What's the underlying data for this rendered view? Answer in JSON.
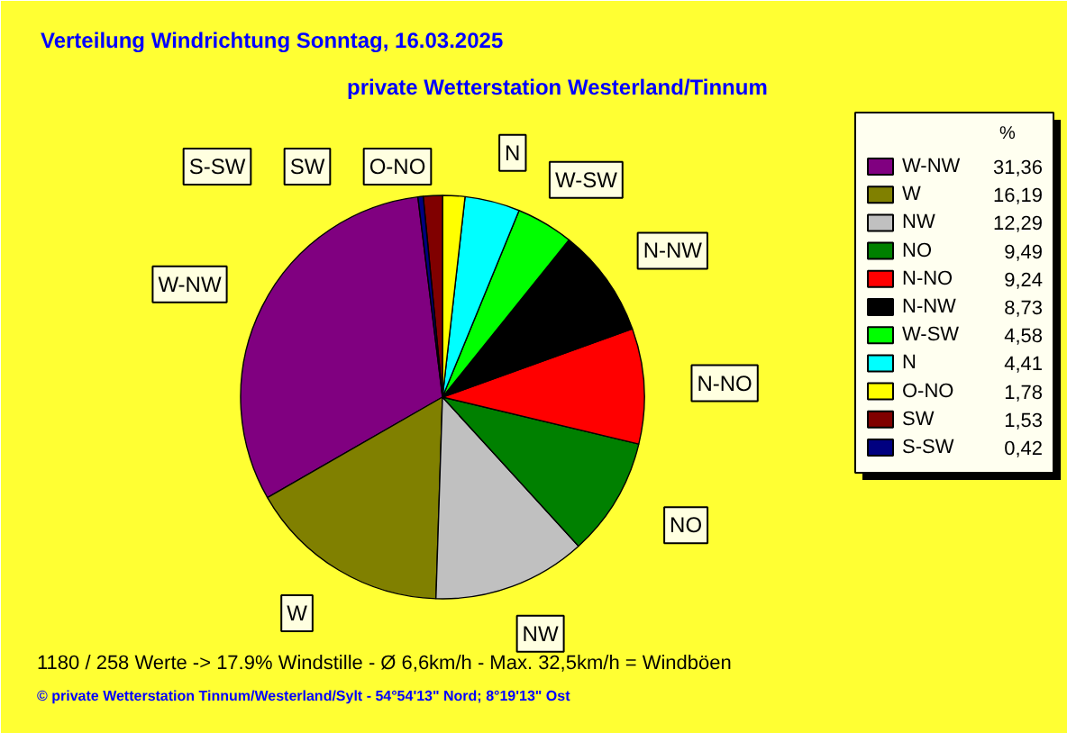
{
  "chart_data": {
    "type": "pie",
    "title": "Verteilung Windrichtung   Sonntag, 16.03.2025",
    "subtitle": "private Wetterstation Westerland/Tinnum",
    "legend_title": "%",
    "categories": [
      "W-NW",
      "W",
      "NW",
      "NO",
      "N-NO",
      "N-NW",
      "W-SW",
      "N",
      "O-NO",
      "SW",
      "S-SW"
    ],
    "values": [
      31.36,
      16.19,
      12.29,
      9.49,
      9.24,
      8.73,
      4.58,
      4.41,
      1.78,
      1.53,
      0.42
    ],
    "value_labels": [
      "31,36",
      "16,19",
      "12,29",
      "9,49",
      "9,24",
      "8,73",
      "4,58",
      "4,41",
      "1,78",
      "1,53",
      "0,42"
    ],
    "colors": [
      "#800080",
      "#808000",
      "#c0c0c0",
      "#008000",
      "#ff0000",
      "#000000",
      "#00ff00",
      "#00ffff",
      "#ffff00",
      "#800000",
      "#000080"
    ],
    "legend": "right",
    "annotations": [
      "1180 / 258 Werte  -> 17.9% Windstille   -   Ø 6,6km/h  -  Max. 32,5km/h = Windböen",
      "© private Wetterstation Tinnum/Westerland/Sylt   -   54°54'13\" Nord; 8°19'13\" Ost"
    ]
  }
}
